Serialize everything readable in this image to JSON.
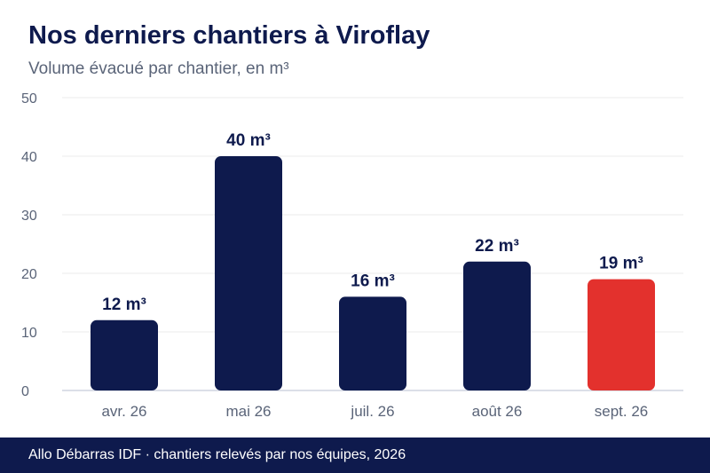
{
  "chart_data": {
    "type": "bar",
    "title": "Nos derniers chantiers à Viroflay",
    "subtitle": "Volume évacué par chantier, en m³",
    "categories": [
      "avr. 26",
      "mai 26",
      "juil. 26",
      "août 26",
      "sept. 26"
    ],
    "values": [
      12,
      40,
      16,
      22,
      19
    ],
    "data_labels": [
      "12 m³",
      "40 m³",
      "16 m³",
      "22 m³",
      "19 m³"
    ],
    "unit": "m³",
    "ylim": [
      0,
      50
    ],
    "yticks": [
      0,
      10,
      20,
      30,
      40,
      50
    ],
    "grid": true,
    "legend": "none",
    "bar_color": "#0e1a4d",
    "highlight_color": "#e3312d",
    "highlight_index": 4
  },
  "footer": {
    "text": "Allo Débarras IDF · chantiers relevés par nos équipes, 2026",
    "background": "#0e1a4d"
  }
}
